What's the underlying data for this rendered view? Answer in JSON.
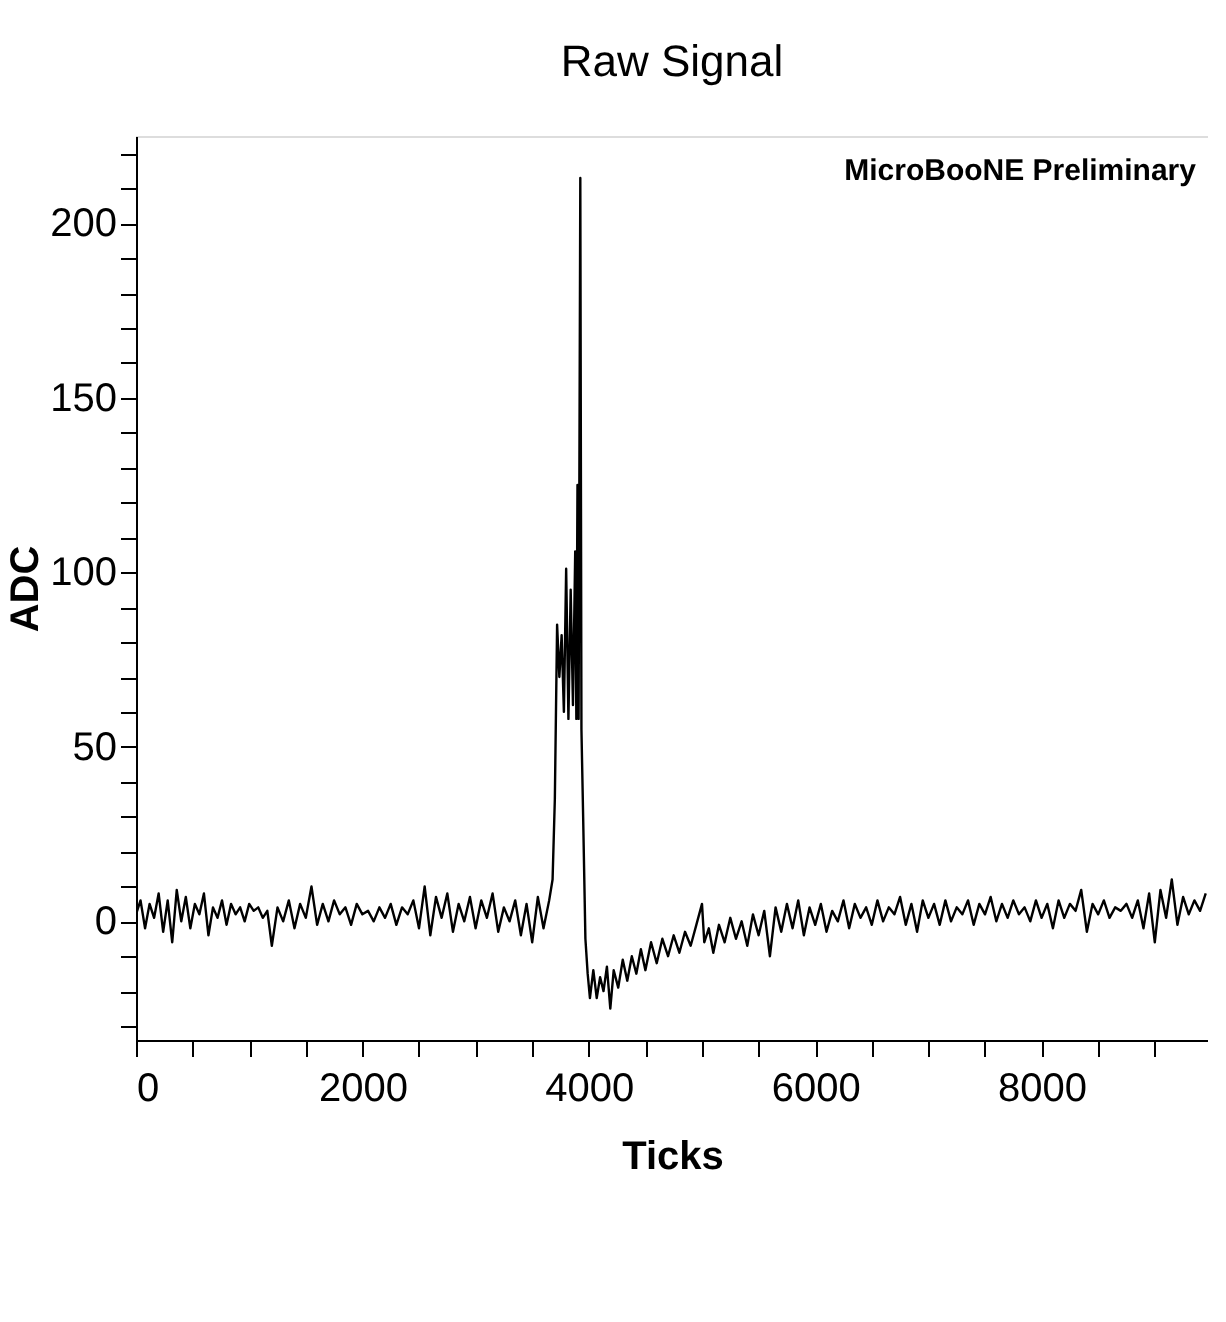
{
  "chart_data": {
    "type": "line",
    "title": "Raw Signal",
    "xlabel": "Ticks",
    "ylabel": "ADC",
    "annotations": [
      "MicroBooNE Preliminary"
    ],
    "xlim": [
      0,
      9470
    ],
    "ylim": [
      -34,
      225
    ],
    "xticks": [
      0,
      {
        "value": 500,
        "label": null
      },
      {
        "value": 1000,
        "label": null
      },
      {
        "value": 1500,
        "label": null
      },
      2000,
      {
        "value": 2500,
        "label": null
      },
      {
        "value": 3000,
        "label": null
      },
      {
        "value": 3500,
        "label": null
      },
      4000,
      {
        "value": 4500,
        "label": null
      },
      {
        "value": 5000,
        "label": null
      },
      {
        "value": 5500,
        "label": null
      },
      6000,
      {
        "value": 6500,
        "label": null
      },
      {
        "value": 7000,
        "label": null
      },
      {
        "value": 7500,
        "label": null
      },
      8000,
      {
        "value": 8500,
        "label": null
      },
      {
        "value": 9000,
        "label": null
      }
    ],
    "yticks": [
      {
        "value": -30,
        "label": null
      },
      {
        "value": -20,
        "label": null
      },
      {
        "value": -10,
        "label": null
      },
      0,
      {
        "value": 10,
        "label": null
      },
      {
        "value": 20,
        "label": null
      },
      {
        "value": 30,
        "label": null
      },
      {
        "value": 40,
        "label": null
      },
      50,
      {
        "value": 60,
        "label": null
      },
      {
        "value": 70,
        "label": null
      },
      {
        "value": 80,
        "label": null
      },
      {
        "value": 90,
        "label": null
      },
      100,
      {
        "value": 110,
        "label": null
      },
      {
        "value": 120,
        "label": null
      },
      {
        "value": 130,
        "label": null
      },
      {
        "value": 140,
        "label": null
      },
      150,
      {
        "value": 160,
        "label": null
      },
      {
        "value": 170,
        "label": null
      },
      {
        "value": 180,
        "label": null
      },
      {
        "value": 190,
        "label": null
      },
      200,
      {
        "value": 210,
        "label": null
      },
      {
        "value": 220,
        "label": null
      }
    ],
    "grid": false,
    "legend": false,
    "marker": "none",
    "line_style": "solid",
    "x": [
      0,
      40,
      80,
      120,
      160,
      200,
      240,
      280,
      320,
      360,
      400,
      440,
      480,
      520,
      560,
      600,
      640,
      680,
      720,
      760,
      800,
      840,
      880,
      920,
      960,
      1000,
      1040,
      1080,
      1120,
      1160,
      1200,
      1250,
      1300,
      1350,
      1400,
      1450,
      1500,
      1550,
      1600,
      1650,
      1700,
      1750,
      1800,
      1850,
      1900,
      1950,
      2000,
      2050,
      2100,
      2150,
      2200,
      2250,
      2300,
      2350,
      2400,
      2450,
      2500,
      2550,
      2600,
      2650,
      2700,
      2750,
      2800,
      2850,
      2900,
      2950,
      3000,
      3050,
      3100,
      3150,
      3200,
      3250,
      3300,
      3350,
      3400,
      3450,
      3500,
      3550,
      3600,
      3650,
      3680,
      3700,
      3720,
      3740,
      3760,
      3780,
      3800,
      3820,
      3840,
      3860,
      3880,
      3890,
      3900,
      3910,
      3925,
      3935,
      3950,
      3970,
      3990,
      4010,
      4040,
      4070,
      4100,
      4130,
      4160,
      4190,
      4220,
      4260,
      4300,
      4340,
      4380,
      4420,
      4460,
      4500,
      4550,
      4600,
      4650,
      4700,
      4750,
      4800,
      4850,
      4900,
      4950,
      5000,
      5020,
      5060,
      5100,
      5150,
      5200,
      5250,
      5300,
      5350,
      5400,
      5450,
      5500,
      5550,
      5600,
      5650,
      5700,
      5750,
      5800,
      5850,
      5900,
      5950,
      6000,
      6050,
      6100,
      6150,
      6200,
      6250,
      6300,
      6350,
      6400,
      6450,
      6500,
      6550,
      6600,
      6650,
      6700,
      6750,
      6800,
      6850,
      6900,
      6950,
      7000,
      7050,
      7100,
      7150,
      7200,
      7250,
      7300,
      7350,
      7400,
      7450,
      7500,
      7550,
      7600,
      7650,
      7700,
      7750,
      7800,
      7850,
      7900,
      7950,
      8000,
      8050,
      8100,
      8150,
      8200,
      8250,
      8300,
      8350,
      8400,
      8450,
      8500,
      8550,
      8600,
      8650,
      8700,
      8750,
      8800,
      8850,
      8900,
      8950,
      9000,
      9050,
      9100,
      9150,
      9200,
      9250,
      9300,
      9350,
      9400,
      9450
    ],
    "series": [
      {
        "color": "#000000",
        "values": [
          2,
          6,
          -2,
          5,
          1,
          8,
          -3,
          6,
          -6,
          9,
          0,
          7,
          -2,
          5,
          2,
          8,
          -4,
          4,
          1,
          6,
          -1,
          5,
          2,
          4,
          0,
          5,
          3,
          4,
          1,
          3,
          -7,
          4,
          0,
          6,
          -2,
          5,
          1,
          10,
          -1,
          5,
          0,
          6,
          2,
          4,
          -1,
          5,
          2,
          3,
          0,
          4,
          1,
          5,
          -1,
          4,
          2,
          6,
          -2,
          10,
          -4,
          7,
          1,
          8,
          -3,
          5,
          0,
          7,
          -2,
          6,
          1,
          8,
          -3,
          4,
          0,
          6,
          -4,
          5,
          -6,
          7,
          -2,
          6,
          12,
          35,
          85,
          70,
          82,
          60,
          101,
          58,
          95,
          62,
          106,
          58,
          125,
          58,
          213,
          55,
          30,
          -5,
          -15,
          -22,
          -14,
          -22,
          -16,
          -20,
          -13,
          -25,
          -14,
          -19,
          -11,
          -17,
          -10,
          -15,
          -8,
          -14,
          -6,
          -12,
          -5,
          -10,
          -4,
          -9,
          -3,
          -7,
          -1,
          5,
          -6,
          -2,
          -9,
          -1,
          -6,
          1,
          -5,
          0,
          -7,
          2,
          -4,
          3,
          -10,
          4,
          -3,
          5,
          -2,
          6,
          -4,
          4,
          -1,
          5,
          -3,
          3,
          0,
          6,
          -2,
          5,
          1,
          4,
          -1,
          6,
          0,
          4,
          2,
          7,
          -1,
          5,
          -3,
          6,
          1,
          5,
          -1,
          6,
          0,
          4,
          2,
          6,
          -1,
          5,
          2,
          7,
          0,
          5,
          1,
          6,
          2,
          4,
          0,
          6,
          1,
          5,
          -2,
          6,
          1,
          5,
          3,
          9,
          -3,
          5,
          2,
          6,
          1,
          4,
          3,
          5,
          1,
          6,
          -2,
          8,
          -6,
          9,
          1,
          12,
          -1,
          7,
          2,
          6,
          3,
          8
        ]
      }
    ]
  }
}
